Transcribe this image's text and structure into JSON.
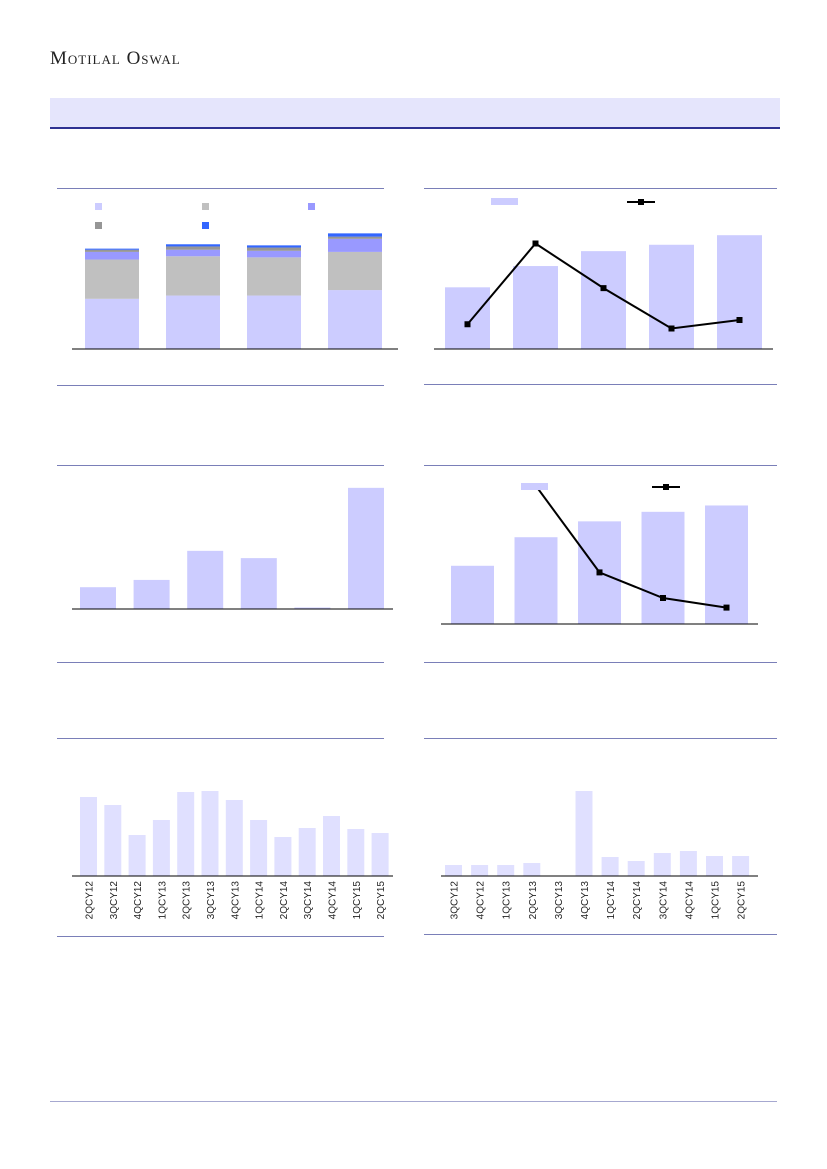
{
  "header": {
    "logo_text": "Motilal Oswal"
  },
  "colors": {
    "band_bg": "#e5e5fc",
    "band_line": "#2e3192",
    "bar_main": "#ccccff",
    "bar_light": "#e0e0ff",
    "stack_grey": "#c0c0c0",
    "stack_periwinkle": "#9999ff",
    "stack_dark_grey": "#969696",
    "stack_blue": "#3366ff",
    "line": "#000000"
  },
  "chart_data": [
    {
      "type": "bar",
      "stacked": true,
      "categories": [
        "",
        "",
        "",
        ""
      ],
      "series": [
        {
          "values": [
            46,
            49,
            49,
            54
          ],
          "color": "#ccccff"
        },
        {
          "values": [
            36,
            36,
            35,
            35
          ],
          "color": "#c0c0c0"
        },
        {
          "values": [
            7,
            6,
            6,
            12
          ],
          "color": "#9999ff"
        },
        {
          "values": [
            2,
            3,
            3,
            2
          ],
          "color": "#969696"
        },
        {
          "values": [
            1,
            2,
            2,
            3
          ],
          "color": "#3366ff"
        }
      ],
      "legend": "top",
      "ylim": [
        0,
        110
      ]
    },
    {
      "type": "bar",
      "categories": [
        "",
        "",
        "",
        "",
        ""
      ],
      "series": [
        {
          "type": "bar",
          "values": [
            58,
            78,
            92,
            98,
            107
          ],
          "color": "#ccccff"
        },
        {
          "type": "line",
          "values": [
            10,
            48,
            27,
            8,
            12
          ],
          "color": "#000000"
        }
      ],
      "legend": "top",
      "ylim": [
        0,
        110
      ],
      "y2lim": [
        4,
        52
      ]
    },
    {
      "type": "bar",
      "categories": [
        "",
        "",
        "",
        "",
        "",
        ""
      ],
      "values": [
        18,
        24,
        48,
        42,
        1,
        100
      ],
      "ylim": [
        0,
        104
      ]
    },
    {
      "type": "bar",
      "categories": [
        "",
        "",
        "",
        "",
        ""
      ],
      "series": [
        {
          "type": "bar",
          "values": [
            55,
            82,
            97,
            106,
            112
          ],
          "color": "#ccccff"
        },
        {
          "type": "line",
          "values": [
            null,
            45,
            18,
            10,
            7
          ],
          "color": "#000000"
        }
      ],
      "legend": "top",
      "ylim": [
        0,
        120
      ],
      "y2lim": [
        0,
        50
      ]
    },
    {
      "type": "bar",
      "categories": [
        "2QCY12",
        "3QCY12",
        "4QCY12",
        "1QCY13",
        "2QCY13",
        "3QCY13",
        "4QCY13",
        "1QCY14",
        "2QCY14",
        "3QCY14",
        "4QCY14",
        "1QCY15",
        "2QCY15"
      ],
      "values": [
        79,
        71,
        41,
        56,
        84,
        85,
        76,
        56,
        39,
        48,
        60,
        47,
        43
      ],
      "ylim": [
        0,
        90
      ]
    },
    {
      "type": "bar",
      "categories": [
        "3QCY12",
        "4QCY12",
        "1QCY13",
        "2QCY13",
        "3QCY13",
        "4QCY13",
        "1QCY14",
        "2QCY14",
        "3QCY14",
        "4QCY14",
        "1QCY15",
        "2QCY15"
      ],
      "values": [
        11,
        11,
        11,
        13,
        0,
        85,
        19,
        15,
        23,
        25,
        20,
        20
      ],
      "ylim": [
        0,
        90
      ]
    }
  ]
}
